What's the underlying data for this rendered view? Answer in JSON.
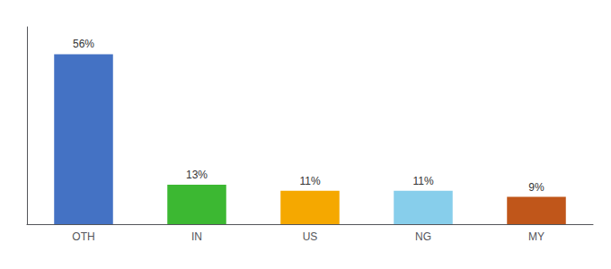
{
  "chart_data": {
    "type": "bar",
    "categories": [
      "OTH",
      "IN",
      "US",
      "NG",
      "MY"
    ],
    "values": [
      56,
      13,
      11,
      11,
      9
    ],
    "value_labels": [
      "56%",
      "13%",
      "11%",
      "11%",
      "9%"
    ],
    "colors": [
      "#4472c4",
      "#3cb832",
      "#f5a800",
      "#87ceeb",
      "#c0561a"
    ],
    "ylim": [
      0,
      65
    ],
    "data_labels": true,
    "tick_labels": "x",
    "grid": false
  }
}
